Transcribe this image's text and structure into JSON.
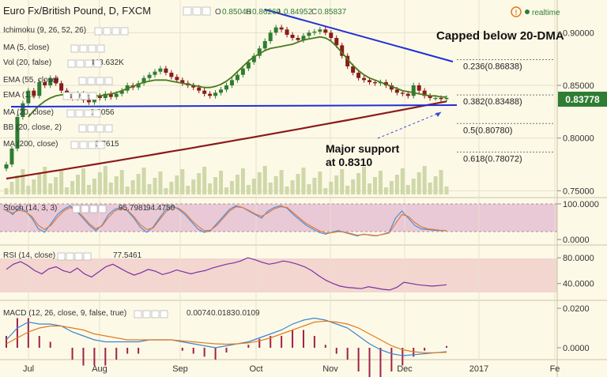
{
  "header": {
    "symbol": "Euro Fx/British Pound, D, FXCM",
    "ohlc": [
      {
        "key": "O",
        "value": "0.85046"
      },
      {
        "key": "H",
        "value": "0.86269"
      },
      {
        "key": "L",
        "value": "0.84952"
      },
      {
        "key": "C",
        "value": "0.85837"
      }
    ],
    "realtime_label": "realtime",
    "realtime_icon": "exclamation-circle-icon"
  },
  "indicators": {
    "ichimoku": "Ichimoku (9, 26, 52, 26)",
    "ma5": "MA (5, close)",
    "vol": "Vol (20, false)",
    "vol_value": "448.632K",
    "ema55": "EMA (55, close)",
    "ema": "EMA (1...",
    "ma20": "MA (20, close)",
    "ma20_value": "0.8056",
    "bb": "BB (20, close, 2)",
    "ma200": "MA (200, close)",
    "ma200_value": "0.7615",
    "stoch": "Stoch (14, 3, 3)",
    "stoch_k": "95.7981",
    "stoch_d": "94.4750",
    "rsi": "RSI (14, close)",
    "rsi_value": "77.5461",
    "macd": "MACD (12, 26, close, 9, false, true)",
    "macd_values": [
      "0.0074",
      "0.0183",
      "0.0109"
    ]
  },
  "annotations": {
    "capped": "Capped below 20-DMA",
    "support": "Major support",
    "support_level": "at 0.8310"
  },
  "fib_levels": [
    {
      "label": "0.236(0.86838)",
      "value": 0.86838
    },
    {
      "label": "0.382(0.83488)",
      "value": 0.83488
    },
    {
      "label": "0.5(0.80780)",
      "value": 0.8078
    },
    {
      "label": "0.618(0.78072)",
      "value": 0.78072
    }
  ],
  "price_badge": {
    "label": "0.83778",
    "color": "#2e7d32"
  },
  "colors": {
    "background": "#fdf9e7",
    "up_candle": "#2e7d32",
    "down_candle": "#8b1a1a",
    "ma20": "#4a7a1e",
    "ma200": "#8b1a1a",
    "trendline": "#1f2fd6",
    "volume": "#cfd8a8",
    "stoch_k": "#4a90d9",
    "stoch_d": "#e07b39",
    "rsi_line": "#7b2fa6",
    "macd_line": "#3a86d0",
    "signal_line": "#e07b20",
    "histogram": "#a0204a"
  },
  "chart_data": [
    {
      "type": "line",
      "x_ticks": [
        "Jul",
        "Aug",
        "Sep",
        "Oct",
        "Nov",
        "Dec",
        "2017",
        "Fe"
      ],
      "y_ticks": [
        "0.90000",
        "0.85000",
        "0.80000",
        "0.75000"
      ],
      "ylim": [
        0.745,
        0.925
      ],
      "candles_close": [
        0.775,
        0.79,
        0.82,
        0.833,
        0.845,
        0.84,
        0.853,
        0.85,
        0.857,
        0.852,
        0.845,
        0.84,
        0.838,
        0.842,
        0.836,
        0.834,
        0.84,
        0.838,
        0.842,
        0.839,
        0.842,
        0.845,
        0.85,
        0.848,
        0.852,
        0.857,
        0.86,
        0.863,
        0.866,
        0.862,
        0.858,
        0.855,
        0.852,
        0.85,
        0.848,
        0.845,
        0.842,
        0.84,
        0.843,
        0.846,
        0.85,
        0.855,
        0.86,
        0.866,
        0.872,
        0.878,
        0.885,
        0.892,
        0.9,
        0.905,
        0.903,
        0.898,
        0.895,
        0.893,
        0.897,
        0.9,
        0.901,
        0.903,
        0.9,
        0.895,
        0.888,
        0.878,
        0.868,
        0.862,
        0.857,
        0.855,
        0.853,
        0.852,
        0.853,
        0.85,
        0.846,
        0.843,
        0.842,
        0.84,
        0.85,
        0.845,
        0.84,
        0.838,
        0.838,
        0.837,
        0.838
      ],
      "ma20": [
        null,
        null,
        null,
        null,
        0.82,
        0.826,
        0.831,
        0.835,
        0.838,
        0.84,
        0.841,
        0.841,
        0.841,
        0.841,
        0.84,
        0.84,
        0.84,
        0.84,
        0.841,
        0.842,
        0.843,
        0.845,
        0.847,
        0.849,
        0.851,
        0.853,
        0.854,
        0.855,
        0.855,
        0.855,
        0.854,
        0.853,
        0.852,
        0.851,
        0.85,
        0.849,
        0.848,
        0.848,
        0.849,
        0.851,
        0.854,
        0.858,
        0.863,
        0.868,
        0.873,
        0.877,
        0.88,
        0.883,
        0.885,
        0.886,
        0.887,
        0.888,
        0.889,
        0.891,
        0.893,
        0.894,
        0.895,
        0.896,
        0.895,
        0.892,
        0.887,
        0.881,
        0.875,
        0.869,
        0.864,
        0.86,
        0.857,
        0.855,
        0.853,
        0.851,
        0.849,
        0.847,
        0.845,
        0.844,
        0.843,
        0.842,
        0.841,
        0.84,
        0.84,
        0.839,
        0.839
      ],
      "ma200_start": 0.7615,
      "ma200_end": 0.8348,
      "trendline_support": 0.8348,
      "trendline_resistance": [
        0.9125,
        0.872
      ]
    },
    {
      "type": "line",
      "title": "Stoch (14, 3, 3)",
      "y_ticks": [
        "100.0000",
        "0.0000"
      ],
      "ylim": [
        0,
        100
      ],
      "series": [
        {
          "name": "%K",
          "values": [
            85,
            70,
            90,
            80,
            60,
            30,
            20,
            45,
            70,
            85,
            95,
            80,
            60,
            40,
            25,
            40,
            70,
            85,
            90,
            80,
            60,
            35,
            20,
            35,
            60,
            85,
            95,
            85,
            70,
            50,
            30,
            20,
            25,
            45,
            65,
            85,
            95,
            90,
            80,
            70,
            60,
            80,
            90,
            95,
            88,
            70,
            55,
            40,
            30,
            20,
            15,
            20,
            25,
            20,
            15,
            10,
            15,
            12,
            10,
            15,
            20,
            60,
            80,
            60,
            40,
            30,
            28,
            26,
            25,
            25
          ]
        },
        {
          "name": "%D",
          "values": [
            80,
            75,
            82,
            78,
            65,
            40,
            28,
            40,
            62,
            80,
            90,
            82,
            65,
            45,
            30,
            38,
            62,
            80,
            88,
            82,
            65,
            42,
            28,
            32,
            55,
            78,
            90,
            88,
            75,
            55,
            38,
            25,
            26,
            40,
            60,
            80,
            92,
            90,
            82,
            72,
            65,
            75,
            86,
            92,
            90,
            75,
            60,
            45,
            35,
            25,
            18,
            19,
            22,
            21,
            17,
            12,
            14,
            13,
            11,
            14,
            18,
            45,
            70,
            65,
            48,
            36,
            30,
            28,
            26,
            25
          ]
        }
      ]
    },
    {
      "type": "line",
      "title": "RSI (14, close)",
      "y_ticks": [
        "80.0000",
        "40.0000"
      ],
      "ylim": [
        20,
        90
      ],
      "series": [
        {
          "name": "RSI",
          "values": [
            62,
            70,
            74,
            68,
            60,
            55,
            63,
            66,
            60,
            57,
            64,
            55,
            50,
            58,
            66,
            70,
            64,
            58,
            53,
            57,
            62,
            59,
            54,
            57,
            61,
            58,
            55,
            58,
            60,
            64,
            67,
            70,
            72,
            75,
            80,
            77,
            73,
            70,
            72,
            75,
            73,
            70,
            66,
            60,
            52,
            45,
            40,
            36,
            34,
            33,
            32,
            35,
            33,
            31,
            30,
            34,
            42,
            40,
            38,
            37,
            36,
            37,
            38
          ]
        }
      ]
    },
    {
      "type": "line",
      "title": "MACD (12, 26, close, 9, false, true)",
      "y_ticks": [
        "0.0200",
        "0.0000"
      ],
      "ylim": [
        -0.004,
        0.022
      ],
      "series": [
        {
          "name": "MACD",
          "values": [
            0.004,
            0.01,
            0.013,
            0.012,
            0.012,
            0.011,
            0.008,
            0.006,
            0.004,
            0.003,
            0.003,
            0.003,
            0.003,
            0.004,
            0.004,
            0.004,
            0.003,
            0.002,
            0.001,
            0.0,
            0.001,
            0.002,
            0.003,
            0.005,
            0.007,
            0.009,
            0.012,
            0.014,
            0.015,
            0.014,
            0.012,
            0.01,
            0.006,
            0.002,
            -0.001,
            -0.003,
            -0.004,
            -0.0035,
            -0.003,
            -0.0025,
            -0.002
          ]
        },
        {
          "name": "Signal",
          "values": [
            0.002,
            0.005,
            0.008,
            0.01,
            0.011,
            0.011,
            0.01,
            0.009,
            0.007,
            0.006,
            0.005,
            0.004,
            0.004,
            0.004,
            0.004,
            0.004,
            0.0035,
            0.003,
            0.0025,
            0.002,
            0.0018,
            0.002,
            0.0025,
            0.0035,
            0.005,
            0.007,
            0.009,
            0.011,
            0.013,
            0.0135,
            0.013,
            0.012,
            0.01,
            0.007,
            0.004,
            0.001,
            -0.001,
            -0.002,
            -0.0025,
            -0.0025,
            -0.0023
          ]
        }
      ]
    }
  ]
}
